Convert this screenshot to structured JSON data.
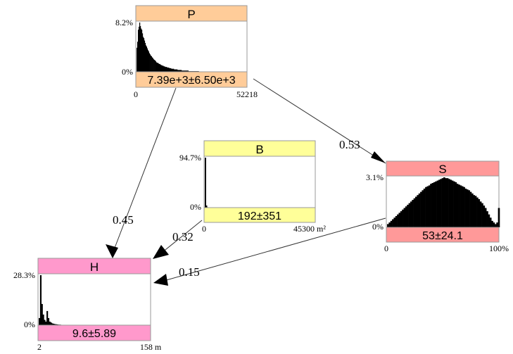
{
  "nodes": {
    "P": {
      "title": "P",
      "summary": "7.39e+3±6.50e+3",
      "y_max_label": "8.2%",
      "y_min_label": "0%",
      "x_min_label": "0",
      "x_max_label": "52218",
      "fill": "#ffcc99",
      "summary_fill": "#ffcc99",
      "histogram": [
        4,
        5,
        7,
        7.5,
        8.2,
        7.6,
        7.2,
        7,
        6.4,
        5.8,
        5.6,
        5.2,
        4.8,
        4.4,
        4.2,
        3.9,
        3.6,
        3.4,
        3.1,
        2.9,
        2.7,
        2.6,
        2.4,
        2.3,
        2.1,
        2,
        1.9,
        1.8,
        1.6,
        1.5,
        1.5,
        1.4,
        1.3,
        1.3,
        1.2,
        1.1,
        1.1,
        1,
        1,
        0.9,
        0.9,
        0.8,
        0.8,
        0.8,
        0.7,
        0.7,
        0.7,
        0.6,
        0.6,
        0.6,
        0.5,
        0.5,
        0.5,
        0.5,
        0.4,
        0.4,
        0.4,
        0.4,
        0.4,
        0.3,
        0.3,
        0.3,
        0.3,
        0.3,
        0.3,
        0.2,
        0.2,
        0.2,
        0.2,
        0.2,
        0.2,
        0.2,
        0.2,
        0.2,
        0.2,
        0.1,
        0.1,
        0.1,
        0.1,
        0.1,
        0.1,
        0.1,
        0.1,
        0.1,
        0.1,
        0.1,
        0.1,
        0.1,
        0.1,
        0.1
      ]
    },
    "B": {
      "title": "B",
      "summary": "192±351",
      "y_max_label": "94.7%",
      "y_min_label": "0%",
      "x_min_label": "0",
      "x_max_label": "45300 m²",
      "fill": "#ffff99",
      "summary_fill": "#ffff99",
      "histogram": [
        94.7,
        4.0,
        0.8
      ]
    },
    "S": {
      "title": "S",
      "summary": "53±24.1",
      "y_max_label": "3.1%",
      "y_min_label": "0%",
      "x_min_label": "0",
      "x_max_label": "100%",
      "fill": "#ff9999",
      "summary_fill": "#ff9999",
      "histogram": [
        0.2,
        0.3,
        0.4,
        0.5,
        0.6,
        0.7,
        0.8,
        0.9,
        1.0,
        1.1,
        1.2,
        1.3,
        1.4,
        1.5,
        1.6,
        1.7,
        1.8,
        1.9,
        2.0,
        2.1,
        2.2,
        2.3,
        2.4,
        2.5,
        2.55,
        2.6,
        2.7,
        2.75,
        2.8,
        2.85,
        2.9,
        2.95,
        3.0,
        3.05,
        3.1,
        3.05,
        3.05,
        3.0,
        2.95,
        2.9,
        2.85,
        2.8,
        2.7,
        2.65,
        2.6,
        2.55,
        2.5,
        2.4,
        2.35,
        2.3,
        2.2,
        2.1,
        2.0,
        1.95,
        1.85,
        1.75,
        1.6,
        1.5,
        1.35,
        1.2,
        1.0,
        0.8,
        0.6,
        0.4,
        0.3,
        0.2,
        0.3,
        1.2
      ]
    },
    "H": {
      "title": "H",
      "summary": "9.6±5.89",
      "y_max_label": "28.3%",
      "y_min_label": "0%",
      "x_min_label": "2",
      "x_max_label": "158 m",
      "fill": "#ff99cc",
      "summary_fill": "#ff99cc",
      "histogram": [
        4,
        28.3,
        12,
        6,
        3,
        2,
        8,
        4,
        2,
        1.5,
        1,
        0.8,
        0.6,
        0.5,
        0.4,
        0.3,
        0.3,
        0.2,
        0.2,
        0.2,
        0.1,
        0.1,
        0.1,
        0.1,
        0.1,
        0.1
      ]
    }
  },
  "edges": [
    {
      "from": "P",
      "to": "S",
      "weight": "0.53"
    },
    {
      "from": "P",
      "to": "H",
      "weight": "0.45"
    },
    {
      "from": "B",
      "to": "H",
      "weight": "0.32"
    },
    {
      "from": "S",
      "to": "H",
      "weight": "0.15"
    }
  ]
}
